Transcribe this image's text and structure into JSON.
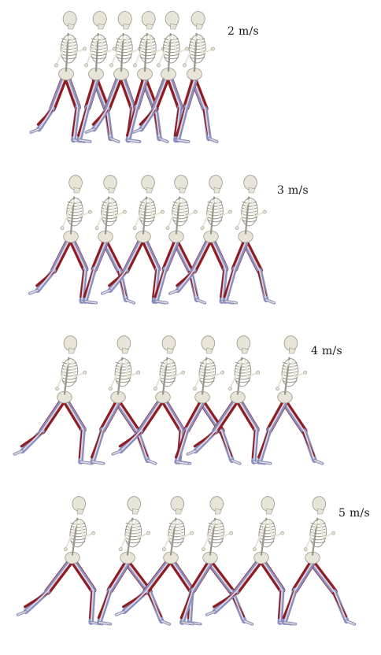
{
  "colors": {
    "bone": "#e8e4d8",
    "bone_shade": "#9a968a",
    "muscle_red": "#8e1e24",
    "muscle_blue": "#8a8fc0",
    "tendon": "#d8d8e4"
  },
  "panels": [
    {
      "speed_label": "2 m/s",
      "runner_count": 6
    },
    {
      "speed_label": "3 m/s",
      "runner_count": 6
    },
    {
      "speed_label": "4 m/s",
      "runner_count": 6
    },
    {
      "speed_label": "5 m/s",
      "runner_count": 6
    }
  ]
}
